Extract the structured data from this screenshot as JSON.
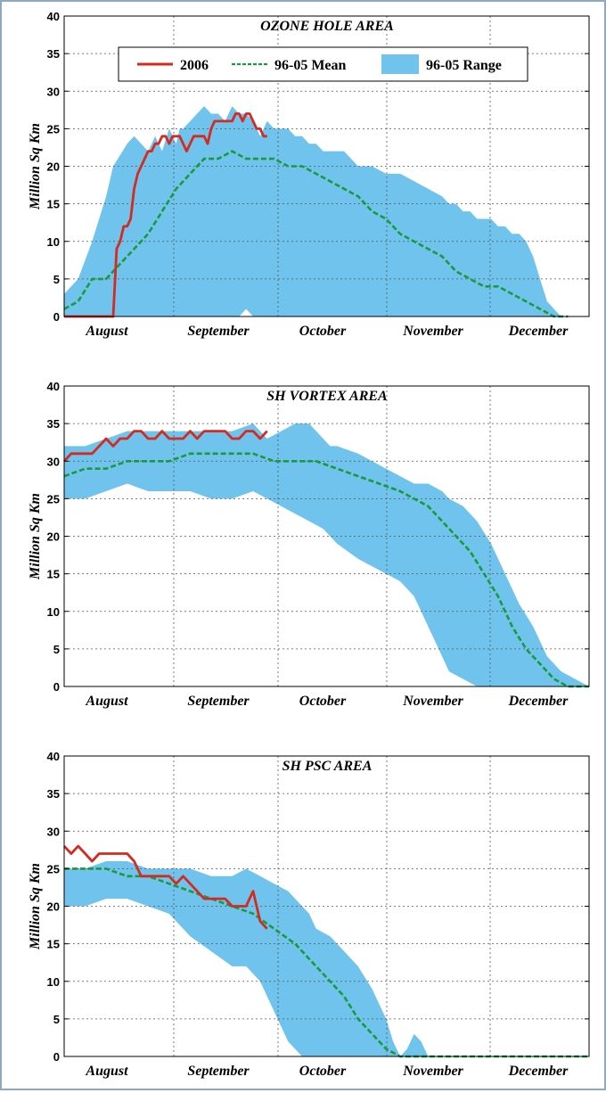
{
  "legend": {
    "items": [
      {
        "label": "2006",
        "color": "#d42a20",
        "style": "solid"
      },
      {
        "label": "96-05 Mean",
        "color": "#1a9a3a",
        "style": "dashed"
      },
      {
        "label": "96-05 Range",
        "color": "#6fc3ec",
        "style": "fill"
      }
    ]
  },
  "chart_data": [
    {
      "type": "area",
      "title": "OZONE HOLE AREA",
      "ylabel": "Million Sq Km",
      "xlabel": "",
      "ylim": [
        0,
        40
      ],
      "yticks": [
        0,
        5,
        10,
        15,
        20,
        25,
        30,
        35,
        40
      ],
      "xlim": [
        0,
        150
      ],
      "x_unit": "days since Aug 1",
      "month_labels": [
        "August",
        "September",
        "October",
        "November",
        "December"
      ],
      "grid": true,
      "legend_position": "top",
      "series": [
        {
          "name": "96-05 Range",
          "kind": "band",
          "x": [
            0,
            4,
            8,
            12,
            14,
            18,
            20,
            24,
            26,
            28,
            30,
            32,
            33,
            34,
            36,
            38,
            40,
            42,
            44,
            46,
            48,
            50,
            52,
            54,
            56,
            58,
            60,
            62,
            64,
            66,
            68,
            70,
            72,
            74,
            76,
            78,
            80,
            84,
            88,
            92,
            96,
            100,
            104,
            108,
            110,
            112,
            114,
            116,
            118,
            120,
            122,
            124,
            126,
            128,
            130,
            132,
            134,
            136,
            138,
            140,
            142,
            144
          ],
          "low": [
            0,
            0,
            0,
            0,
            0,
            0,
            0,
            0,
            0,
            0,
            0,
            0,
            0,
            0,
            0,
            0,
            0,
            0,
            0,
            0,
            0,
            0,
            1,
            0,
            0,
            0,
            0,
            0,
            0,
            0,
            0,
            0,
            0,
            0,
            0,
            0,
            0,
            0,
            0,
            0,
            0,
            0,
            0,
            0,
            0,
            0,
            0,
            0,
            0,
            0,
            0,
            0,
            0,
            0,
            0,
            0,
            0,
            0,
            0,
            0,
            0,
            0
          ],
          "high": [
            3,
            5,
            10,
            16,
            20,
            23,
            24,
            22,
            24,
            22,
            25,
            23,
            25,
            25,
            26,
            27,
            28,
            27,
            27,
            26,
            28,
            27,
            27,
            26,
            24,
            26,
            25,
            25,
            25,
            24,
            24,
            23,
            23,
            22,
            22,
            22,
            22,
            20,
            20,
            19,
            19,
            18,
            17,
            16,
            15,
            15,
            14,
            14,
            13,
            13,
            13,
            12,
            12,
            11,
            11,
            10,
            8,
            5,
            2,
            1,
            0,
            0
          ]
        },
        {
          "name": "96-05 Mean",
          "kind": "line",
          "style": "dashed",
          "x": [
            0,
            4,
            8,
            12,
            16,
            20,
            24,
            28,
            32,
            36,
            40,
            44,
            48,
            52,
            56,
            60,
            64,
            68,
            72,
            76,
            80,
            84,
            88,
            92,
            96,
            100,
            104,
            108,
            112,
            116,
            120,
            124,
            128,
            132,
            136,
            140,
            144
          ],
          "y": [
            1,
            2,
            5,
            5,
            7,
            9,
            11,
            14,
            17,
            19,
            21,
            21,
            22,
            21,
            21,
            21,
            20,
            20,
            19,
            18,
            17,
            16,
            14,
            13,
            11,
            10,
            9,
            8,
            6,
            5,
            4,
            4,
            3,
            2,
            1,
            0,
            0
          ]
        },
        {
          "name": "2006",
          "kind": "line",
          "style": "solid",
          "x": [
            0,
            2,
            4,
            6,
            8,
            10,
            12,
            14,
            15,
            16,
            17,
            18,
            19,
            20,
            21,
            22,
            23,
            24,
            25,
            26,
            27,
            28,
            29,
            30,
            31,
            32,
            33,
            34,
            35,
            36,
            37,
            38,
            39,
            40,
            41,
            42,
            43,
            44,
            45,
            46,
            47,
            48,
            49,
            50,
            51,
            52,
            53,
            54,
            55,
            56,
            57,
            58
          ],
          "y": [
            0,
            0,
            0,
            0,
            0,
            0,
            0,
            0,
            9,
            10,
            12,
            12,
            13,
            17,
            19,
            20,
            21,
            22,
            22,
            23,
            23,
            24,
            24,
            23,
            24,
            24,
            24,
            23,
            22,
            23,
            24,
            24,
            24,
            24,
            23,
            25,
            26,
            26,
            26,
            26,
            26,
            26,
            27,
            27,
            26,
            27,
            27,
            26,
            25,
            25,
            24,
            24
          ]
        }
      ]
    },
    {
      "type": "area",
      "title": "SH VORTEX AREA",
      "ylabel": "Million Sq Km",
      "xlabel": "",
      "ylim": [
        0,
        40
      ],
      "yticks": [
        0,
        5,
        10,
        15,
        20,
        25,
        30,
        35,
        40
      ],
      "xlim": [
        0,
        150
      ],
      "x_unit": "days since Aug 1",
      "month_labels": [
        "August",
        "September",
        "October",
        "November",
        "December"
      ],
      "grid": true,
      "series": [
        {
          "name": "96-05 Range",
          "kind": "band",
          "x": [
            0,
            6,
            12,
            18,
            24,
            30,
            36,
            42,
            48,
            54,
            58,
            62,
            66,
            70,
            74,
            76,
            78,
            84,
            88,
            92,
            96,
            100,
            104,
            108,
            110,
            114,
            118,
            122,
            126,
            130,
            134,
            138,
            142,
            146,
            150
          ],
          "low": [
            25,
            25,
            26,
            27,
            26,
            26,
            26,
            25,
            25,
            26,
            25,
            24,
            23,
            22,
            21,
            20,
            19,
            17,
            16,
            15,
            14,
            12,
            8,
            4,
            2,
            1,
            0,
            0,
            0,
            0,
            0,
            0,
            0,
            0,
            0
          ],
          "high": [
            32,
            32,
            33,
            34,
            34,
            34,
            34,
            34,
            34,
            35,
            33,
            34,
            35,
            35,
            33,
            32,
            32,
            31,
            30,
            29,
            28,
            27,
            27,
            26,
            25,
            24,
            22,
            19,
            15,
            11,
            8,
            4,
            2,
            1,
            0
          ]
        },
        {
          "name": "96-05 Mean",
          "kind": "line",
          "style": "dashed",
          "x": [
            0,
            6,
            12,
            18,
            24,
            30,
            36,
            42,
            48,
            54,
            60,
            66,
            72,
            78,
            84,
            90,
            96,
            100,
            104,
            108,
            112,
            116,
            120,
            124,
            128,
            132,
            136,
            140,
            144,
            148,
            150
          ],
          "y": [
            28,
            29,
            29,
            30,
            30,
            30,
            31,
            31,
            31,
            31,
            30,
            30,
            30,
            29,
            28,
            27,
            26,
            25,
            24,
            22,
            20,
            18,
            15,
            12,
            8,
            5,
            3,
            1,
            0,
            0,
            0
          ]
        },
        {
          "name": "2006",
          "kind": "line",
          "style": "solid",
          "x": [
            0,
            2,
            4,
            6,
            8,
            10,
            12,
            14,
            16,
            18,
            20,
            22,
            24,
            26,
            28,
            30,
            32,
            34,
            36,
            38,
            40,
            42,
            44,
            46,
            48,
            50,
            52,
            54,
            56,
            58
          ],
          "y": [
            30,
            31,
            31,
            31,
            31,
            32,
            33,
            32,
            33,
            33,
            34,
            34,
            33,
            33,
            34,
            33,
            33,
            33,
            34,
            33,
            34,
            34,
            34,
            34,
            33,
            33,
            34,
            34,
            33,
            34
          ]
        }
      ]
    },
    {
      "type": "area",
      "title": "SH PSC AREA",
      "ylabel": "Million Sq Km",
      "xlabel": "",
      "ylim": [
        0,
        40
      ],
      "yticks": [
        0,
        5,
        10,
        15,
        20,
        25,
        30,
        35,
        40
      ],
      "xlim": [
        0,
        150
      ],
      "x_unit": "days since Aug 1",
      "month_labels": [
        "August",
        "September",
        "October",
        "November",
        "December"
      ],
      "grid": true,
      "series": [
        {
          "name": "96-05 Range",
          "kind": "band",
          "x": [
            0,
            6,
            12,
            18,
            24,
            30,
            36,
            42,
            48,
            52,
            56,
            60,
            64,
            68,
            70,
            72,
            76,
            80,
            84,
            88,
            92,
            94,
            96,
            98,
            100,
            102,
            104,
            150
          ],
          "low": [
            20,
            20,
            21,
            21,
            20,
            19,
            16,
            14,
            12,
            12,
            10,
            6,
            2,
            0,
            0,
            0,
            0,
            0,
            0,
            0,
            0,
            0,
            0,
            0,
            0,
            0,
            0,
            0
          ],
          "high": [
            25,
            25,
            26,
            26,
            25,
            25,
            25,
            24,
            24,
            25,
            24,
            23,
            22,
            20,
            19,
            17,
            16,
            14,
            12,
            9,
            5,
            2,
            0,
            1,
            3,
            2,
            0,
            0
          ]
        },
        {
          "name": "96-05 Mean",
          "kind": "line",
          "style": "dashed",
          "x": [
            0,
            6,
            12,
            18,
            24,
            30,
            36,
            42,
            48,
            54,
            60,
            66,
            72,
            76,
            80,
            84,
            88,
            92,
            96,
            100,
            104,
            108,
            112,
            150
          ],
          "y": [
            25,
            25,
            25,
            24,
            24,
            23,
            22,
            21,
            20,
            19,
            17,
            15,
            12,
            10,
            8,
            5,
            3,
            1,
            0,
            0,
            0,
            0,
            0,
            0
          ]
        },
        {
          "name": "2006",
          "kind": "line",
          "style": "solid",
          "x": [
            0,
            2,
            4,
            6,
            8,
            10,
            12,
            14,
            16,
            18,
            20,
            22,
            24,
            26,
            28,
            30,
            32,
            34,
            36,
            38,
            40,
            42,
            44,
            46,
            48,
            50,
            52,
            54,
            56,
            58
          ],
          "y": [
            28,
            27,
            28,
            27,
            26,
            27,
            27,
            27,
            27,
            27,
            26,
            24,
            24,
            24,
            24,
            24,
            23,
            24,
            23,
            22,
            21,
            21,
            21,
            21,
            20,
            20,
            20,
            22,
            18,
            17
          ]
        }
      ]
    }
  ]
}
